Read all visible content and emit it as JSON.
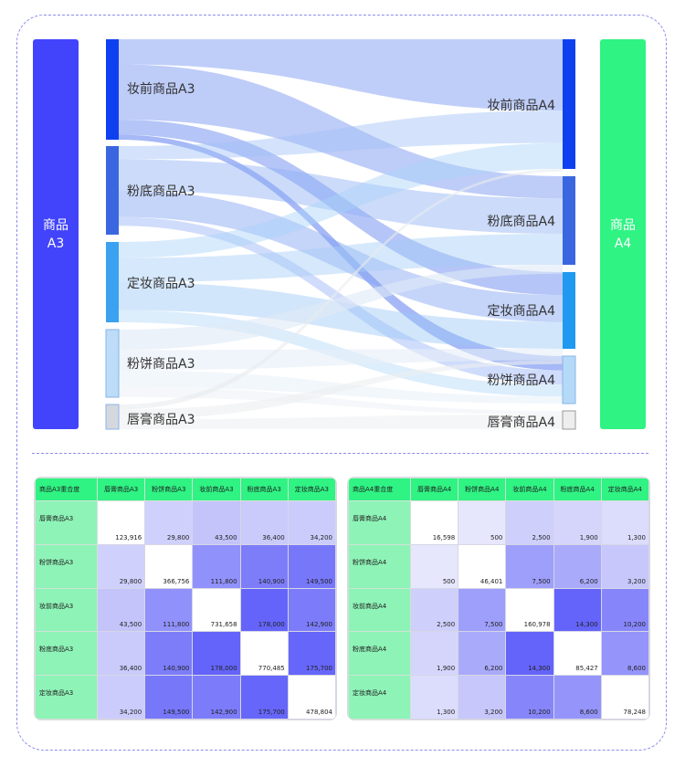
{
  "sankey": {
    "left_group": "商品\nA3",
    "right_group": "商品\nA4",
    "left_nodes": [
      "妆前商品A3",
      "粉底商品A3",
      "定妆商品A3",
      "粉饼商品A3",
      "唇膏商品A3"
    ],
    "right_nodes": [
      "妆前商品A4",
      "粉底商品A4",
      "定妆商品A4",
      "粉饼商品A4",
      "唇膏商品A4"
    ],
    "left_colors": [
      "#0f40f0",
      "#3a67e0",
      "#3aa2f0",
      "#bcdcf8",
      "#d4d8de"
    ],
    "right_colors": [
      "#0f40f0",
      "#3a67e0",
      "#1f9af0",
      "#b4daf8",
      "#eeeeee"
    ],
    "left_group_color": "#4244fb",
    "right_group_color": "#2ff383"
  },
  "chart_data": [
    {
      "type": "table",
      "title": "商品A3重合度",
      "corner": "商品A3重合度",
      "columns": [
        "唇膏商品A3",
        "粉饼商品A3",
        "妆前商品A3",
        "粉底商品A3",
        "定妆商品A3"
      ],
      "rows": [
        "唇膏商品A3",
        "粉饼商品A3",
        "妆前商品A3",
        "粉底商品A3",
        "定妆商品A3"
      ],
      "values": [
        [
          "123,916",
          "29,800",
          "43,500",
          "36,400",
          "34,200"
        ],
        [
          "29,800",
          "366,756",
          "111,800",
          "140,900",
          "149,500"
        ],
        [
          "43,500",
          "111,800",
          "731,658",
          "178,000",
          "142,900"
        ],
        [
          "36,400",
          "140,900",
          "178,000",
          "770,485",
          "175,700"
        ],
        [
          "34,200",
          "149,500",
          "142,900",
          "175,700",
          "478,804"
        ]
      ]
    },
    {
      "type": "table",
      "title": "商品A4重合度",
      "corner": "商品A4重合度",
      "columns": [
        "唇膏商品A4",
        "粉饼商品A4",
        "妆前商品A4",
        "粉底商品A4",
        "定妆商品A4"
      ],
      "rows": [
        "唇膏商品A4",
        "粉饼商品A4",
        "妆前商品A4",
        "粉底商品A4",
        "定妆商品A4"
      ],
      "values": [
        [
          "16,598",
          "500",
          "2,500",
          "1,900",
          "1,300"
        ],
        [
          "500",
          "46,401",
          "7,500",
          "6,200",
          "3,200"
        ],
        [
          "2,500",
          "7,500",
          "160,978",
          "14,300",
          "10,200"
        ],
        [
          "1,900",
          "6,200",
          "14,300",
          "85,427",
          "8,600"
        ],
        [
          "1,300",
          "3,200",
          "10,200",
          "8,600",
          "78,248"
        ]
      ]
    }
  ]
}
